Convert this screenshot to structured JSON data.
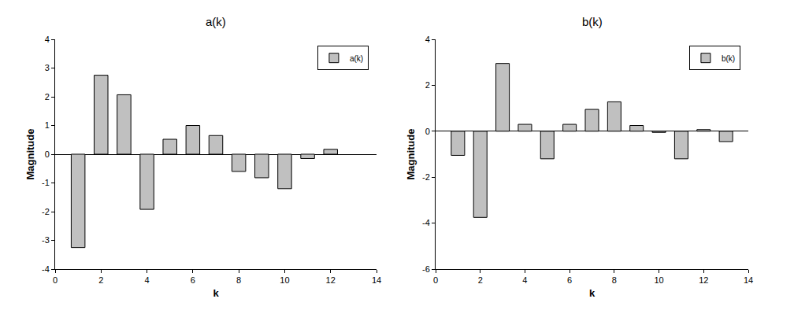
{
  "chart_data": [
    {
      "type": "bar",
      "title": "a(k)",
      "x_label": "k",
      "y_label": "Magnitude",
      "x": [
        1,
        2,
        3,
        4,
        5,
        6,
        7,
        8,
        9,
        10,
        11,
        12
      ],
      "series": [
        {
          "name": "a(k)",
          "color": "#c0c0c0",
          "values": [
            -3.25,
            2.75,
            2.07,
            -1.92,
            0.52,
            1.0,
            0.65,
            -0.6,
            -0.82,
            -1.2,
            -0.15,
            0.17
          ]
        }
      ],
      "xlim": [
        0,
        14
      ],
      "xticks": [
        0,
        2,
        4,
        6,
        8,
        10,
        12,
        14
      ],
      "ylim": [
        -4,
        4
      ],
      "yticks": [
        -4,
        -3,
        -2,
        -1,
        0,
        1,
        2,
        3,
        4
      ],
      "legend": "top right",
      "grid": false
    },
    {
      "type": "bar",
      "title": "b(k)",
      "x_label": "k",
      "y_label": "Magnitude",
      "x": [
        1,
        2,
        3,
        4,
        5,
        6,
        7,
        8,
        9,
        10,
        11,
        12,
        13
      ],
      "series": [
        {
          "name": "b(k)",
          "color": "#c0c0c0",
          "values": [
            -1.05,
            -3.75,
            2.95,
            0.3,
            -1.2,
            0.3,
            0.95,
            1.28,
            0.25,
            -0.05,
            -1.2,
            0.07,
            -0.45
          ]
        }
      ],
      "xlim": [
        0,
        14
      ],
      "xticks": [
        0,
        2,
        4,
        6,
        8,
        10,
        12,
        14
      ],
      "ylim": [
        -6,
        4
      ],
      "yticks": [
        -6,
        -4,
        -2,
        0,
        2,
        4
      ],
      "legend": "top right",
      "grid": false
    }
  ]
}
